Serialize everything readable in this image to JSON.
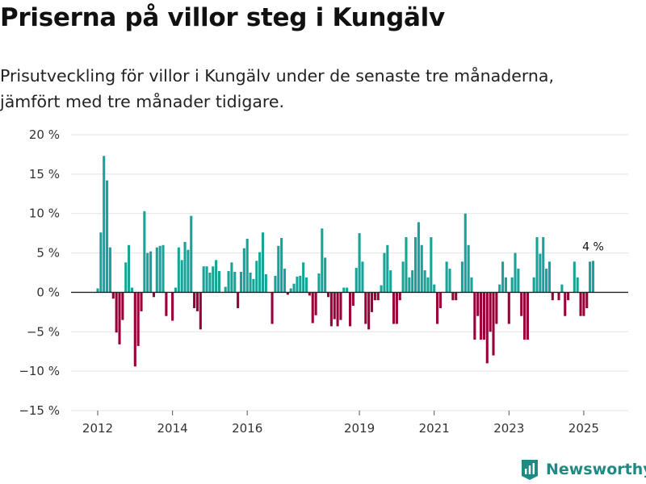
{
  "title": "Priserna på villor steg i Kungälv",
  "subtitle": "Prisutveckling för villor i Kungälv under de senaste tre månaderna, jämfört med tre månader tidigare.",
  "brand": "Newsworthy",
  "colors": {
    "positive": "#17a397",
    "negative": "#99003a",
    "grid": "#e3e3e3",
    "brand": "#1f8a84"
  },
  "chart_data": {
    "type": "bar",
    "ylim": [
      -15,
      20
    ],
    "y_ticks": [
      {
        "value": 20,
        "label": "20 %"
      },
      {
        "value": 15,
        "label": "15 %"
      },
      {
        "value": 10,
        "label": "10 %"
      },
      {
        "value": 5,
        "label": "5 %"
      },
      {
        "value": 0,
        "label": "0 %"
      },
      {
        "value": -5,
        "label": "−5 %"
      },
      {
        "value": -10,
        "label": "−10 %"
      },
      {
        "value": -15,
        "label": "−15 %"
      }
    ],
    "x_start": 2012,
    "x_end": 2026.2,
    "x_ticks": [
      {
        "value": 2012,
        "label": "2012"
      },
      {
        "value": 2014,
        "label": "2014"
      },
      {
        "value": 2016,
        "label": "2016"
      },
      {
        "value": 2019,
        "label": "2019"
      },
      {
        "value": 2021,
        "label": "2021"
      },
      {
        "value": 2023,
        "label": "2023"
      },
      {
        "value": 2025,
        "label": "2025"
      }
    ],
    "start_year": 2012,
    "start_month": 1,
    "values": [
      0.5,
      7.6,
      17.3,
      14.2,
      5.7,
      -0.8,
      -5.1,
      -6.6,
      -3.5,
      3.8,
      6.0,
      0.6,
      -9.4,
      -6.8,
      -2.4,
      10.3,
      5.0,
      5.2,
      -0.6,
      5.7,
      5.9,
      6.0,
      -3.0,
      0.0,
      -3.6,
      0.6,
      5.7,
      4.1,
      6.4,
      5.4,
      9.7,
      -2.0,
      -2.4,
      -4.7,
      3.3,
      3.3,
      2.5,
      3.3,
      4.1,
      2.7,
      0.0,
      0.7,
      2.7,
      3.8,
      2.6,
      -2.0,
      2.6,
      5.6,
      6.8,
      2.5,
      1.7,
      4.0,
      5.1,
      7.6,
      2.3,
      0.0,
      -4.0,
      2.1,
      5.9,
      6.9,
      3.0,
      -0.3,
      0.5,
      1.1,
      2.0,
      2.1,
      3.8,
      1.9,
      -0.4,
      -3.9,
      -2.9,
      2.4,
      8.1,
      4.4,
      -0.6,
      -4.3,
      -3.4,
      -4.3,
      -3.5,
      0.6,
      0.6,
      -4.3,
      -1.7,
      3.1,
      7.5,
      3.9,
      -4.0,
      -4.7,
      -2.5,
      -1.0,
      -1.0,
      0.9,
      5.0,
      6.0,
      2.8,
      -4.0,
      -4.0,
      -1.0,
      3.9,
      7.0,
      1.9,
      2.8,
      7.0,
      8.9,
      6.0,
      2.8,
      1.9,
      7.0,
      1.0,
      -4.0,
      -2.0,
      0.0,
      3.9,
      3.0,
      -1.0,
      -1.0,
      0.0,
      3.9,
      10.0,
      6.0,
      1.9,
      -6.0,
      -3.0,
      -6.0,
      -6.0,
      -9.0,
      -5.0,
      -8.0,
      -4.0,
      1.0,
      3.9,
      1.9,
      -4.0,
      1.9,
      5.0,
      3.0,
      -3.0,
      -6.0,
      -6.0,
      0.0,
      1.9,
      7.0,
      4.9,
      7.0,
      3.0,
      3.9,
      -1.0,
      0.0,
      -1.0,
      1.0,
      -3.0,
      -1.0,
      0.0,
      3.9,
      1.9,
      -3.0,
      -3.0,
      -2.0,
      3.9,
      4.0
    ],
    "annotation": {
      "label": "4 %"
    }
  }
}
